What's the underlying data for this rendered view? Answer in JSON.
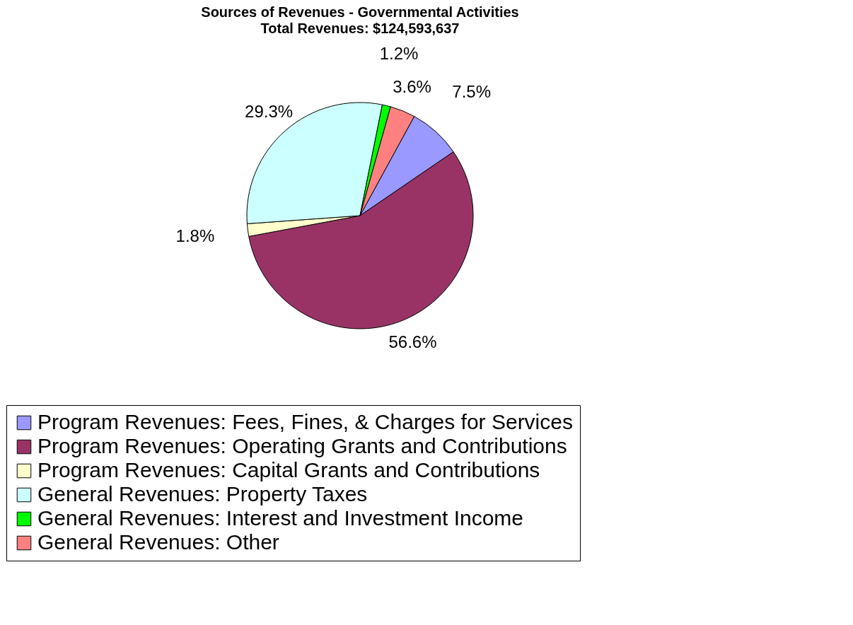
{
  "chart_data": {
    "type": "pie",
    "title": "Sources of Revenues - Governmental Activities",
    "subtitle": "Total Revenues:  $124,593,637",
    "categories": [
      "Program Revenues: Fees, Fines, & Charges for Services",
      "Program Revenues: Operating Grants and Contributions",
      "Program Revenues: Capital Grants and Contributions",
      "General Revenues: Property Taxes",
      "General Revenues: Interest and Investment Income",
      "General Revenues: Other"
    ],
    "values": [
      7.5,
      56.6,
      1.8,
      29.3,
      1.2,
      3.6
    ],
    "value_labels": [
      "7.5%",
      "56.6%",
      "1.8%",
      "29.3%",
      "1.2%",
      "3.6%"
    ],
    "colors": [
      "#9999ff",
      "#993366",
      "#ffffcc",
      "#ccffff",
      "#00ff00",
      "#ff8080"
    ],
    "legend": "bottom"
  }
}
